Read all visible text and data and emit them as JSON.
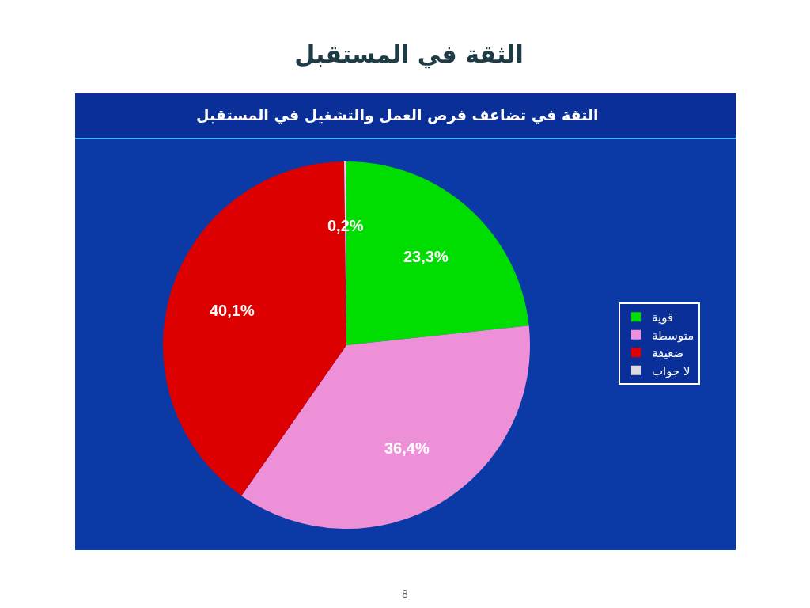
{
  "chart_data": {
    "type": "pie",
    "title": "الثقة في المستقبل",
    "subtitle": "الثقة في تضاعف فرص العمل والتشغيل في المستقبل",
    "categories": [
      "قوية",
      "متوسطة",
      "ضعيفة",
      "لا جواب"
    ],
    "values": [
      23.3,
      36.4,
      40.1,
      0.2
    ],
    "colors": [
      "#00dd00",
      "#ee90d8",
      "#dd0000",
      "#dcdcdc"
    ],
    "value_labels": [
      "23,3%",
      "36,4%",
      "40,1%",
      "0,2%"
    ],
    "legend": "right",
    "annotations": [
      "8"
    ]
  }
}
